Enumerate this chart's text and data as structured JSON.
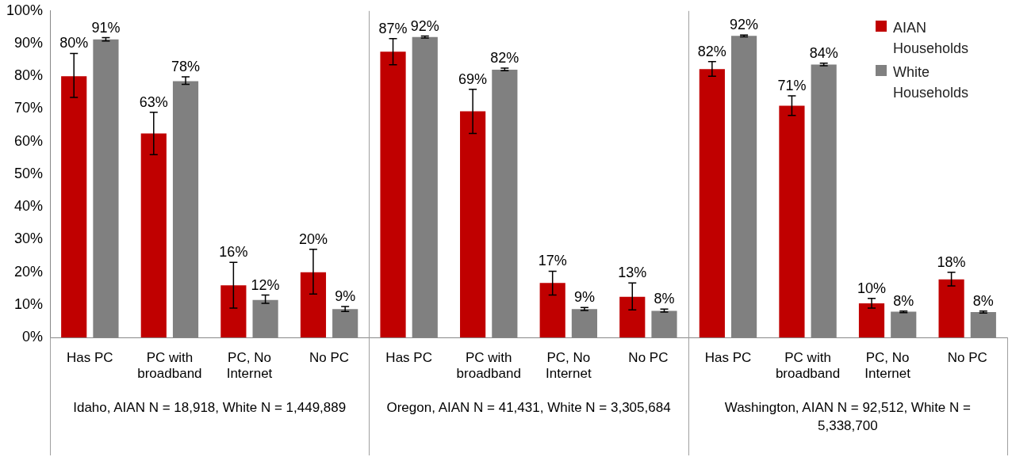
{
  "chart_data": {
    "type": "bar",
    "categories": [
      "Has PC",
      "PC with broadband",
      "PC, No Internet",
      "No PC",
      "Has PC",
      "PC with broadband",
      "PC, No Internet",
      "No PC",
      "Has PC",
      "PC with broadband",
      "PC, No Internet",
      "No PC"
    ],
    "series": [
      {
        "name": "AIAN Households",
        "color": "#c00000",
        "values": [
          80,
          62.5,
          16,
          20,
          87.5,
          69.3,
          16.7,
          12.5,
          82.2,
          71,
          10.5,
          17.8
        ],
        "errors": [
          [
            73.5,
            87
          ],
          [
            56,
            69
          ],
          [
            9,
            23
          ],
          [
            13.3,
            27
          ],
          [
            83.5,
            91.5
          ],
          [
            62.5,
            76
          ],
          [
            13,
            20.3
          ],
          [
            8.5,
            16.7
          ],
          [
            80,
            84.5
          ],
          [
            68,
            74
          ],
          [
            9,
            12
          ],
          [
            15.8,
            20
          ]
        ],
        "value_labels": [
          "80%",
          "63%",
          "16%",
          "20%",
          "87%",
          "69%",
          "17%",
          "13%",
          "82%",
          "71%",
          "10%",
          "18%"
        ]
      },
      {
        "name": "White Households",
        "color": "#808080",
        "values": [
          91.3,
          78.5,
          11.5,
          8.7,
          92,
          82,
          8.7,
          8.2,
          92.4,
          83.6,
          7.9,
          7.8
        ],
        "errors": [
          [
            90.8,
            91.8
          ],
          [
            77.5,
            79.8
          ],
          [
            10.5,
            13
          ],
          [
            8,
            9.5
          ],
          [
            91.7,
            92.3
          ],
          [
            81.7,
            82.5
          ],
          [
            8.3,
            9.2
          ],
          [
            7.8,
            8.7
          ],
          [
            92.1,
            92.6
          ],
          [
            83.2,
            84
          ],
          [
            7.6,
            8.1
          ],
          [
            7.5,
            8.1
          ]
        ],
        "value_labels": [
          "91%",
          "78%",
          "12%",
          "9%",
          "92%",
          "82%",
          "9%",
          "8%",
          "92%",
          "84%",
          "8%",
          "8%"
        ]
      }
    ],
    "ylim": [
      0,
      100
    ],
    "yticks": [
      {
        "value": 0,
        "label": "0%"
      },
      {
        "value": 10,
        "label": "10%"
      },
      {
        "value": 20,
        "label": "20%"
      },
      {
        "value": 30,
        "label": "30%"
      },
      {
        "value": 40,
        "label": "40%"
      },
      {
        "value": 50,
        "label": "50%"
      },
      {
        "value": 60,
        "label": "60%"
      },
      {
        "value": 70,
        "label": "70%"
      },
      {
        "value": 80,
        "label": "80%"
      },
      {
        "value": 90,
        "label": "90%"
      },
      {
        "value": 100,
        "label": "100%"
      }
    ],
    "annotations": [
      "Idaho, AIAN N = 18,918, White N = 1,449,889",
      "Oregon, AIAN N = 41,431, White N = 3,305,684",
      "Washington, AIAN N = 92,512, White N = 5,338,700"
    ],
    "grid": false,
    "legend": "top right"
  }
}
